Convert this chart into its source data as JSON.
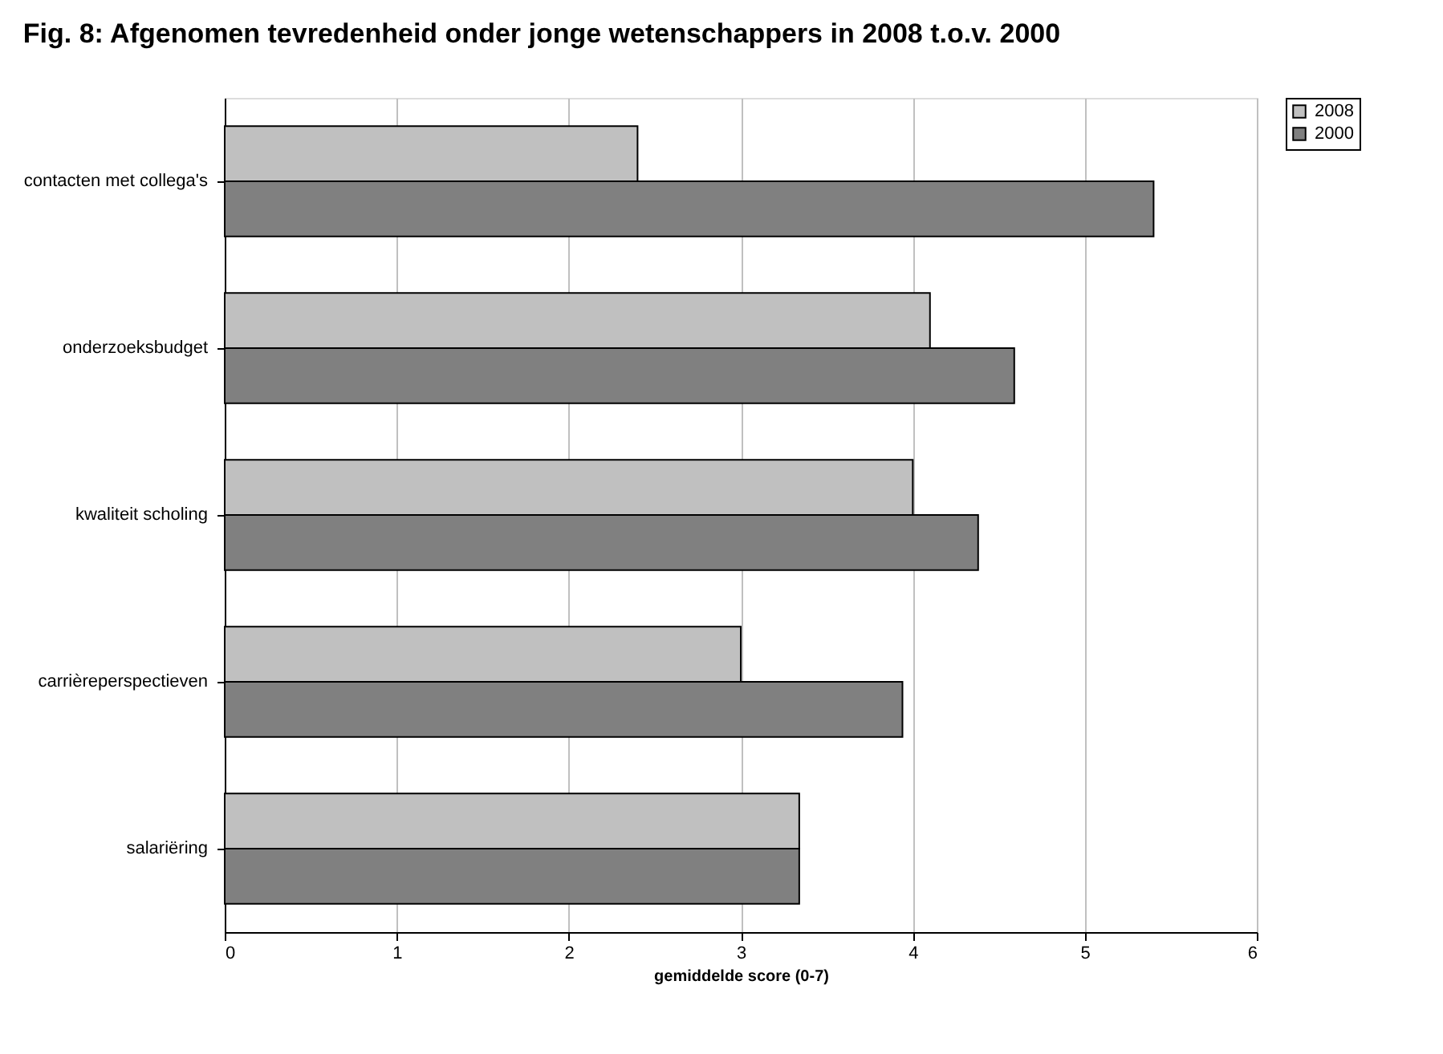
{
  "chart_data": {
    "type": "bar",
    "orientation": "horizontal",
    "title": "Fig. 8: Afgenomen tevredenheid onder jonge wetenschappers in 2008 t.o.v. 2000",
    "xlabel": "gemiddelde score (0-7)",
    "categories": [
      "contacten met collega's",
      "onderzoeksbudget",
      "kwaliteit scholing",
      "carrièreperspectieven",
      "salariëring"
    ],
    "series": [
      {
        "name": "2008",
        "color": "#c0c0c0",
        "values": [
          2.4,
          4.1,
          4.0,
          3.0,
          3.34
        ]
      },
      {
        "name": "2000",
        "color": "#808080",
        "values": [
          5.4,
          4.59,
          4.38,
          3.94,
          3.34
        ]
      }
    ],
    "xlim": [
      0,
      6
    ],
    "xticks": [
      0,
      1,
      2,
      3,
      4,
      5,
      6
    ],
    "grid": "x",
    "legend": "right"
  }
}
